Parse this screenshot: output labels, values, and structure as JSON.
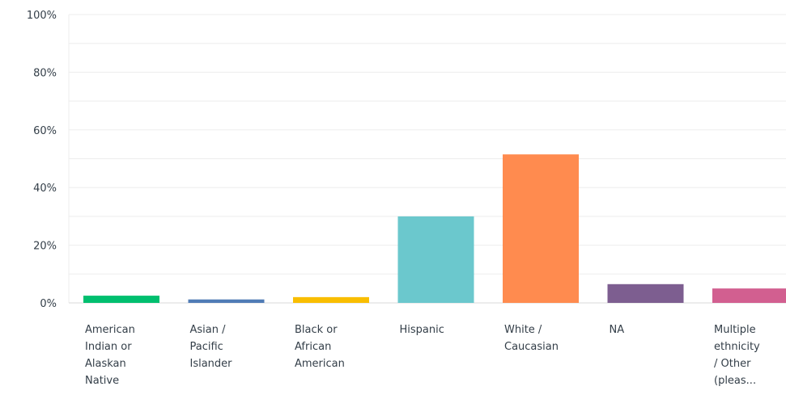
{
  "chart_data": {
    "type": "bar",
    "title": "",
    "xlabel": "",
    "ylabel": "",
    "ylim": [
      0,
      100
    ],
    "y_ticks": [
      "0%",
      "20%",
      "40%",
      "60%",
      "80%",
      "100%"
    ],
    "grid": true,
    "categories": [
      [
        "American",
        "Indian or",
        "Alaskan",
        "Native"
      ],
      [
        "Asian /",
        "Pacific",
        "Islander"
      ],
      [
        "Black or",
        "African",
        "American"
      ],
      [
        "Hispanic"
      ],
      [
        "White /",
        "Caucasian"
      ],
      [
        "NA"
      ],
      [
        "Multiple",
        "ethnicity",
        "/ Other",
        "(pleas..."
      ]
    ],
    "values": [
      2.5,
      1.2,
      2.0,
      30,
      51.5,
      6.5,
      5.0
    ],
    "colors": [
      "#00bf6f",
      "#507cb6",
      "#f9be00",
      "#6bc8cd",
      "#ff8b4f",
      "#7d5e90",
      "#d25f90"
    ],
    "grid_color": "#ededed",
    "baseline_color": "#d9d9d9"
  }
}
